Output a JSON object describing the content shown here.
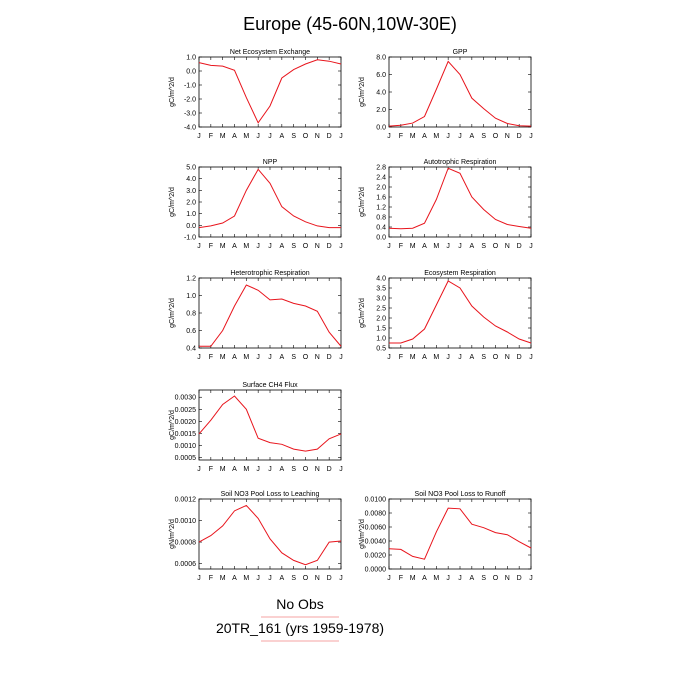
{
  "title": "Europe (45-60N,10W-30E)",
  "legend": {
    "label_1": "No Obs",
    "label_2": "20TR_161 (yrs 1959-1978)",
    "color_1": "#f4a3a3",
    "color_2": "#f4a3a3"
  },
  "line_color": "#e8141c",
  "chart_data": [
    {
      "type": "line",
      "title": "Net Ecosystem Exchange",
      "ylabel": "gC/m^2/d",
      "categories": [
        "J",
        "F",
        "M",
        "A",
        "M",
        "J",
        "J",
        "A",
        "S",
        "O",
        "N",
        "D",
        "J"
      ],
      "values": [
        0.6,
        0.4,
        0.35,
        0.05,
        -1.9,
        -3.7,
        -2.5,
        -0.5,
        0.1,
        0.5,
        0.8,
        0.7,
        0.5
      ],
      "ylim": [
        -4.0,
        1.0
      ],
      "yticks": [
        -4.0,
        -3.0,
        -2.0,
        -1.0,
        0.0,
        1.0
      ],
      "ytick_labels": [
        "-4.0",
        "-3.0",
        "-2.0",
        "-1.0",
        "0.0",
        "1.0"
      ]
    },
    {
      "type": "line",
      "title": "GPP",
      "ylabel": "gC/m^2/d",
      "categories": [
        "J",
        "F",
        "M",
        "A",
        "M",
        "J",
        "J",
        "A",
        "S",
        "O",
        "N",
        "D",
        "J"
      ],
      "values": [
        0.1,
        0.2,
        0.45,
        1.2,
        4.3,
        7.5,
        6.0,
        3.3,
        2.1,
        1.0,
        0.4,
        0.15,
        0.1
      ],
      "ylim": [
        0.0,
        8.0
      ],
      "yticks": [
        0.0,
        2.0,
        4.0,
        6.0,
        8.0
      ],
      "ytick_labels": [
        "0.0",
        "2.0",
        "4.0",
        "6.0",
        "8.0"
      ]
    },
    {
      "type": "line",
      "title": "NPP",
      "ylabel": "gC/m^2/d",
      "categories": [
        "J",
        "F",
        "M",
        "A",
        "M",
        "J",
        "J",
        "A",
        "S",
        "O",
        "N",
        "D",
        "J"
      ],
      "values": [
        -0.2,
        -0.05,
        0.2,
        0.8,
        3.0,
        4.8,
        3.6,
        1.6,
        0.8,
        0.3,
        -0.05,
        -0.2,
        -0.2
      ],
      "ylim": [
        -1.0,
        5.0
      ],
      "yticks": [
        -1.0,
        0.0,
        1.0,
        2.0,
        3.0,
        4.0,
        5.0
      ],
      "ytick_labels": [
        "-1.0",
        "0.0",
        "1.0",
        "2.0",
        "3.0",
        "4.0",
        "5.0"
      ]
    },
    {
      "type": "line",
      "title": "Autotrophic Respiration",
      "ylabel": "gC/m^2/d",
      "categories": [
        "J",
        "F",
        "M",
        "A",
        "M",
        "J",
        "J",
        "A",
        "S",
        "O",
        "N",
        "D",
        "J"
      ],
      "values": [
        0.35,
        0.33,
        0.35,
        0.55,
        1.5,
        2.75,
        2.55,
        1.6,
        1.1,
        0.7,
        0.5,
        0.42,
        0.35
      ],
      "ylim": [
        0.0,
        2.8
      ],
      "yticks": [
        0.0,
        0.4,
        0.8,
        1.2,
        1.6,
        2.0,
        2.4,
        2.8
      ],
      "ytick_labels": [
        "0.0",
        "0.4",
        "0.8",
        "1.2",
        "1.6",
        "2.0",
        "2.4",
        "2.8"
      ]
    },
    {
      "type": "line",
      "title": "Heterotrophic Respiration",
      "ylabel": "gC/m^2/d",
      "categories": [
        "J",
        "F",
        "M",
        "A",
        "M",
        "J",
        "J",
        "A",
        "S",
        "O",
        "N",
        "D",
        "J"
      ],
      "values": [
        0.42,
        0.42,
        0.6,
        0.88,
        1.12,
        1.06,
        0.95,
        0.96,
        0.91,
        0.88,
        0.82,
        0.58,
        0.42
      ],
      "ylim": [
        0.4,
        1.2
      ],
      "yticks": [
        0.4,
        0.6,
        0.8,
        1.0,
        1.2
      ],
      "ytick_labels": [
        "0.4",
        "0.6",
        "0.8",
        "1.0",
        "1.2"
      ]
    },
    {
      "type": "line",
      "title": "Ecosystem Respiration",
      "ylabel": "gC/m^2/d",
      "categories": [
        "J",
        "F",
        "M",
        "A",
        "M",
        "J",
        "J",
        "A",
        "S",
        "O",
        "N",
        "D",
        "J"
      ],
      "values": [
        0.75,
        0.75,
        0.95,
        1.45,
        2.65,
        3.85,
        3.5,
        2.6,
        2.05,
        1.6,
        1.3,
        0.95,
        0.75
      ],
      "ylim": [
        0.5,
        4.0
      ],
      "yticks": [
        0.5,
        1.0,
        1.5,
        2.0,
        2.5,
        3.0,
        3.5,
        4.0
      ],
      "ytick_labels": [
        "0.5",
        "1.0",
        "1.5",
        "2.0",
        "2.5",
        "3.0",
        "3.5",
        "4.0"
      ]
    },
    {
      "type": "line",
      "title": "Surface CH4 Flux",
      "ylabel": "gC/m^2/d",
      "categories": [
        "J",
        "F",
        "M",
        "A",
        "M",
        "J",
        "J",
        "A",
        "S",
        "O",
        "N",
        "D",
        "J"
      ],
      "values": [
        0.00148,
        0.00205,
        0.0027,
        0.00305,
        0.0025,
        0.0013,
        0.00112,
        0.00105,
        0.00085,
        0.00077,
        0.00085,
        0.00128,
        0.00148
      ],
      "ylim": [
        0.0004,
        0.0033
      ],
      "yticks": [
        0.0005,
        0.001,
        0.0015,
        0.002,
        0.0025,
        0.003
      ],
      "ytick_labels": [
        "0.0005",
        "0.0010",
        "0.0015",
        "0.0020",
        "0.0025",
        "0.0030"
      ]
    },
    {
      "type": "line",
      "title": "Soil NO3 Pool Loss to Leaching",
      "ylabel": "gN/m^2/d",
      "categories": [
        "J",
        "F",
        "M",
        "A",
        "M",
        "J",
        "J",
        "A",
        "S",
        "O",
        "N",
        "D",
        "J"
      ],
      "values": [
        0.0008,
        0.00086,
        0.00095,
        0.00109,
        0.00114,
        0.00102,
        0.00083,
        0.0007,
        0.00063,
        0.00059,
        0.00063,
        0.0008,
        0.00081
      ],
      "ylim": [
        0.00055,
        0.0012
      ],
      "yticks": [
        0.0006,
        0.0008,
        0.001,
        0.0012
      ],
      "ytick_labels": [
        "0.0006",
        "0.0008",
        "0.0010",
        "0.0012"
      ]
    },
    {
      "type": "line",
      "title": "Soil NO3 Pool Loss to Runoff",
      "ylabel": "gN/m^2/d",
      "categories": [
        "J",
        "F",
        "M",
        "A",
        "M",
        "J",
        "J",
        "A",
        "S",
        "O",
        "N",
        "D",
        "J"
      ],
      "values": [
        0.0029,
        0.0028,
        0.0018,
        0.0014,
        0.0053,
        0.0087,
        0.0086,
        0.0064,
        0.0059,
        0.0052,
        0.0049,
        0.0039,
        0.003
      ],
      "ylim": [
        0.0,
        0.01
      ],
      "yticks": [
        0.0,
        0.002,
        0.004,
        0.006,
        0.008,
        0.01
      ],
      "ytick_labels": [
        "0.0000",
        "0.0020",
        "0.0040",
        "0.0060",
        "0.0080",
        "0.0100"
      ]
    }
  ]
}
